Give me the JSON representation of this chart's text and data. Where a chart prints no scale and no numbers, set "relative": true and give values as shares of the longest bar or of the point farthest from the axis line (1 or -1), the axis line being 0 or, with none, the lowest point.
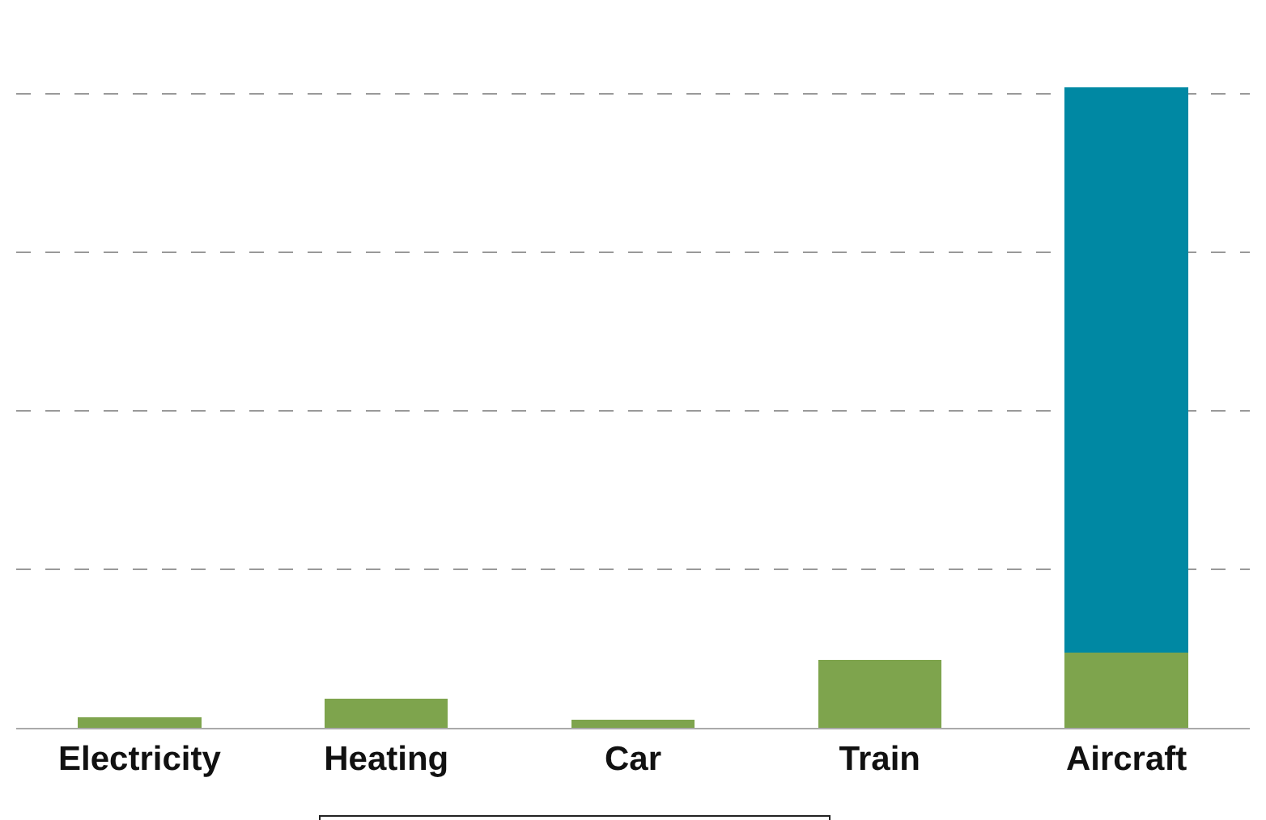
{
  "chart_data": {
    "type": "bar",
    "relative": true,
    "stacked": true,
    "grid": "y",
    "categories": [
      "Electricity",
      "Heating",
      "Car",
      "Train",
      "Aircraft"
    ],
    "series": [
      {
        "color": "#7ea44d",
        "values": [
          0.017,
          0.046,
          0.013,
          0.106,
          0.118
        ]
      },
      {
        "color": "#0088a3",
        "values": [
          null,
          null,
          null,
          null,
          0.882
        ]
      }
    ]
  }
}
